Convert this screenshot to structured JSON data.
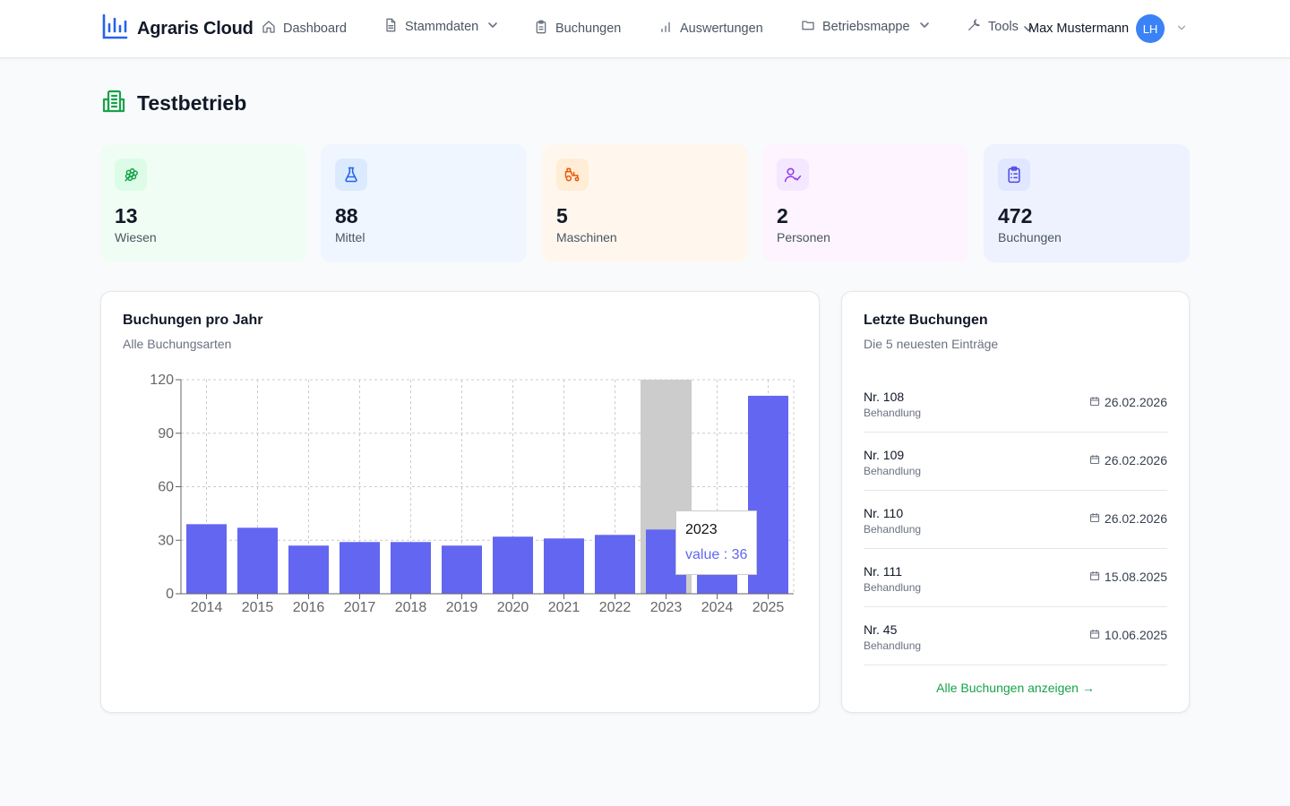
{
  "app": {
    "title": "Agraris Cloud"
  },
  "nav": [
    {
      "label": "Dashboard",
      "icon": "home-icon",
      "dropdown": false
    },
    {
      "label": "Stammdaten",
      "icon": "document-icon",
      "dropdown": true
    },
    {
      "label": "Buchungen",
      "icon": "clipboard-icon",
      "dropdown": false
    },
    {
      "label": "Auswertungen",
      "icon": "bar-chart-icon",
      "dropdown": false
    },
    {
      "label": "Betriebsmappe",
      "icon": "folder-icon",
      "dropdown": true
    },
    {
      "label": "Tools",
      "icon": "wrench-icon",
      "dropdown": true
    }
  ],
  "user": {
    "name": "Max Mustermann",
    "initials": "LH"
  },
  "page": {
    "title": "Testbetrieb"
  },
  "stats": [
    {
      "value": "13",
      "label": "Wiesen",
      "icon": "grapes-icon",
      "bg": "#f0fdf4",
      "icon_bg": "#dcfce7",
      "icon_color": "#16a34a"
    },
    {
      "value": "88",
      "label": "Mittel",
      "icon": "flask-icon",
      "bg": "#eff6ff",
      "icon_bg": "#dbeafe",
      "icon_color": "#2563eb"
    },
    {
      "value": "5",
      "label": "Maschinen",
      "icon": "tractor-icon",
      "bg": "#fff7ed",
      "icon_bg": "#ffedd5",
      "icon_color": "#ea580c"
    },
    {
      "value": "2",
      "label": "Personen",
      "icon": "user-check-icon",
      "bg": "#fdf4ff",
      "icon_bg": "#f3e8ff",
      "icon_color": "#9333ea"
    },
    {
      "value": "472",
      "label": "Buchungen",
      "icon": "clipboard-list-icon",
      "bg": "#eef2ff",
      "icon_bg": "#e0e7ff",
      "icon_color": "#4f46e5"
    }
  ],
  "chart_card": {
    "title": "Buchungen pro Jahr",
    "subtitle": "Alle Buchungsarten"
  },
  "chart_data": {
    "type": "bar",
    "categories": [
      "2014",
      "2015",
      "2016",
      "2017",
      "2018",
      "2019",
      "2020",
      "2021",
      "2022",
      "2023",
      "2024",
      "2025"
    ],
    "series": [
      {
        "name": "value",
        "values": [
          39,
          37,
          27,
          29,
          29,
          27,
          32,
          31,
          33,
          36,
          30,
          111
        ]
      }
    ],
    "ylim": [
      0,
      120
    ],
    "yticks": [
      0,
      30,
      60,
      90,
      120
    ],
    "grid": true,
    "bar_color": "#6366f1",
    "highlight_category": "2023",
    "tooltip": {
      "label": "2023",
      "text": "value : 36"
    }
  },
  "recent": {
    "title": "Letzte Buchungen",
    "subtitle": "Die 5 neuesten Einträge",
    "items": [
      {
        "nr": "Nr. 108",
        "type": "Behandlung",
        "date": "26.02.2026"
      },
      {
        "nr": "Nr. 109",
        "type": "Behandlung",
        "date": "26.02.2026"
      },
      {
        "nr": "Nr. 110",
        "type": "Behandlung",
        "date": "26.02.2026"
      },
      {
        "nr": "Nr. 111",
        "type": "Behandlung",
        "date": "15.08.2025"
      },
      {
        "nr": "Nr. 45",
        "type": "Behandlung",
        "date": "10.06.2025"
      }
    ],
    "all_link": "Alle Buchungen anzeigen →"
  },
  "colors": {
    "accent": "#6366f1",
    "brand": "#2563eb",
    "link": "#16a34a"
  }
}
